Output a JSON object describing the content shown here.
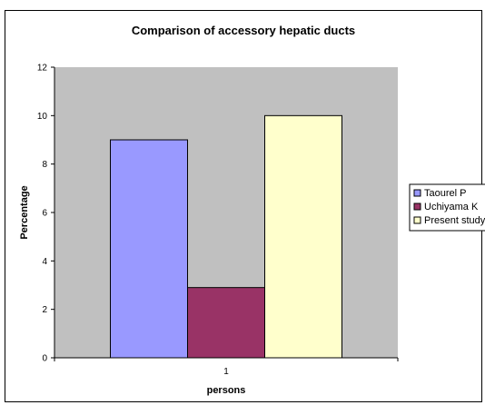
{
  "chart_data": {
    "type": "bar",
    "title": "Comparison of accessory hepatic ducts",
    "xlabel": "persons",
    "ylabel": "Percentage",
    "categories": [
      "1"
    ],
    "ylim": [
      0,
      12
    ],
    "yticks": [
      0,
      2,
      4,
      6,
      8,
      10,
      12
    ],
    "grid": false,
    "legend_position": "right",
    "plot_background": "#c0c0c0",
    "series": [
      {
        "name": "Taourel P",
        "values": [
          9
        ],
        "color": "#9999ff"
      },
      {
        "name": "Uchiyama K",
        "values": [
          2.9
        ],
        "color": "#993366"
      },
      {
        "name": "Present study",
        "values": [
          10
        ],
        "color": "#ffffcc"
      }
    ]
  }
}
